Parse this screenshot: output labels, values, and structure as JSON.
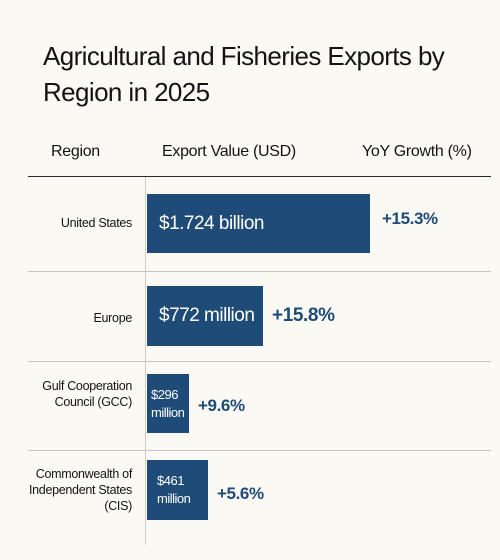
{
  "chart_data": {
    "type": "bar",
    "orientation": "horizontal",
    "title": "Agricultural and Fisheries Exports by Region in 2025",
    "columns": {
      "region": "Region",
      "value": "Export Value (USD)",
      "growth": "YoY Growth (%)"
    },
    "unit": "USD million",
    "bar_color": "#1f4b78",
    "rows": [
      {
        "region": "United States",
        "value": 1724,
        "value_label": "$1.724 billion",
        "growth_label": "+15.3%"
      },
      {
        "region": "Europe",
        "value": 772,
        "value_label": "$772 million",
        "growth_label": "+15.8%"
      },
      {
        "region": "Gulf Cooperation Council (GCC)",
        "value": 296,
        "value_label": "$296 million",
        "growth_label": "+9.6%"
      },
      {
        "region": "Commonwealth of Independent States (CIS)",
        "value": 461,
        "value_label": "$461 million",
        "growth_label": "+5.6%"
      }
    ]
  }
}
